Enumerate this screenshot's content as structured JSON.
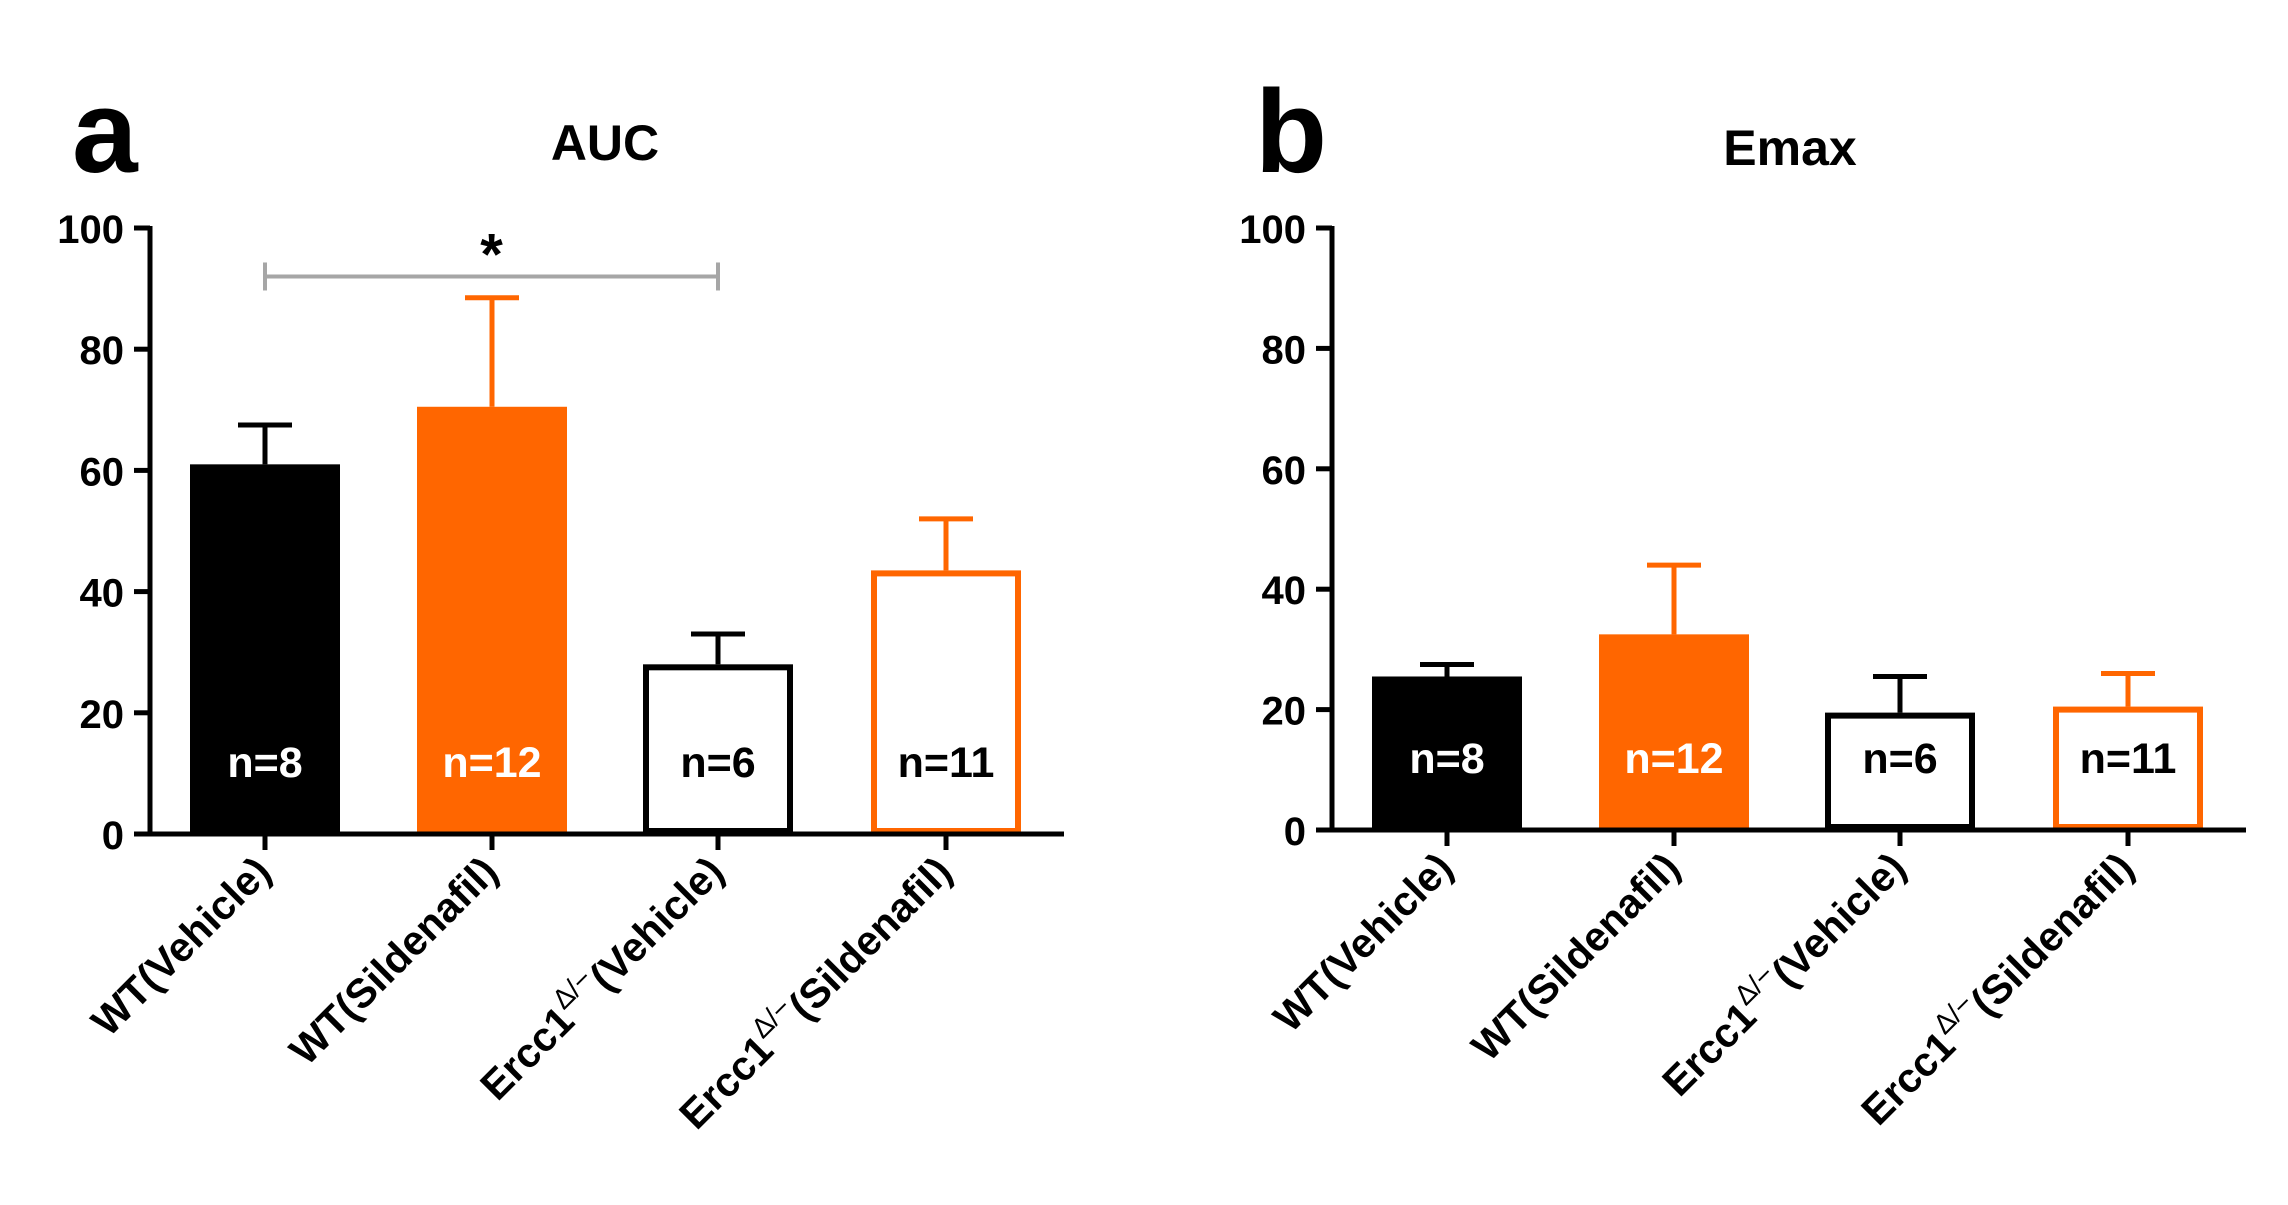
{
  "panels": [
    {
      "letter": "a",
      "chart_data": {
        "type": "bar",
        "title": "AUC",
        "xlabel": "",
        "ylabel": "",
        "ylim": [
          0,
          100
        ],
        "yticks": [
          0,
          20,
          40,
          60,
          80,
          100
        ],
        "categories": [
          {
            "base": "WT",
            "suffix": "(Vehicle)"
          },
          {
            "base": "WT",
            "suffix": "(Sildenafil)"
          },
          {
            "base": "Ercc1",
            "sup": "Δ/−",
            "suffix": "(Vehicle)"
          },
          {
            "base": "Ercc1",
            "sup": "Δ/−",
            "suffix": "(Sildenafil)"
          }
        ],
        "values": [
          61,
          70.5,
          28,
          43.5
        ],
        "errors": [
          6.5,
          18,
          5,
          8.5
        ],
        "n_labels": [
          "n=8",
          "n=12",
          "n=6",
          "n=11"
        ],
        "significance": [
          {
            "from": 0,
            "to": 2,
            "label": "*",
            "y": 92
          }
        ]
      }
    },
    {
      "letter": "b",
      "chart_data": {
        "type": "bar",
        "title": "Emax",
        "xlabel": "",
        "ylabel": "",
        "ylim": [
          0,
          100
        ],
        "yticks": [
          0,
          20,
          40,
          60,
          80,
          100
        ],
        "categories": [
          {
            "base": "WT",
            "suffix": "(Vehicle)"
          },
          {
            "base": "WT",
            "suffix": "(Sildenafil)"
          },
          {
            "base": "Ercc1",
            "sup": "Δ/−",
            "suffix": "(Vehicle)"
          },
          {
            "base": "Ercc1",
            "sup": "Δ/−",
            "suffix": "(Sildenafil)"
          }
        ],
        "values": [
          25.5,
          32.5,
          19.5,
          20.5
        ],
        "errors": [
          2,
          11.5,
          6,
          5.5
        ],
        "n_labels": [
          "n=8",
          "n=12",
          "n=6",
          "n=11"
        ],
        "significance": []
      }
    }
  ],
  "style": {
    "bar_styles": [
      "solid-black",
      "solid-orange",
      "outline-black",
      "outline-orange"
    ],
    "black": "#000000",
    "orange": "#ff6600",
    "bracket_color": "#a6a6a6",
    "background": "#ffffff"
  }
}
